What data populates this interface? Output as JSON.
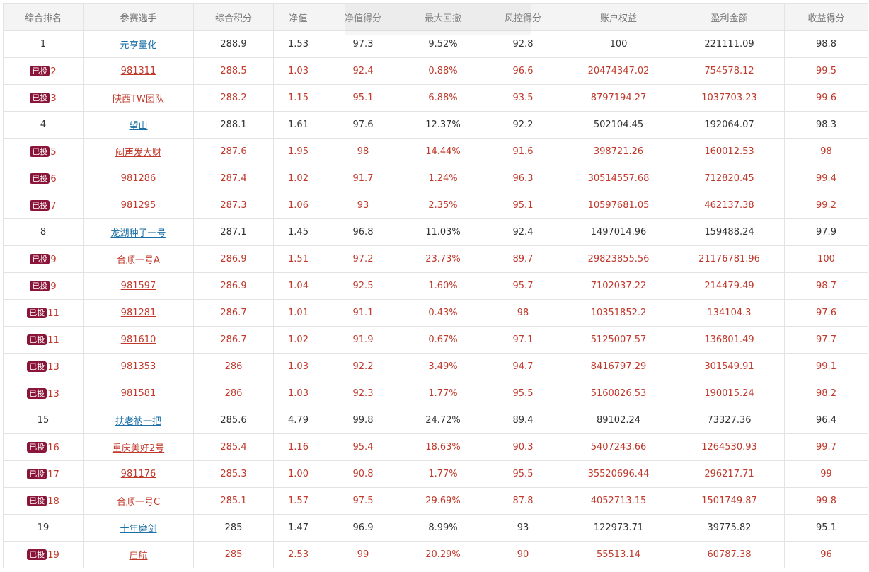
{
  "columns": [
    "综合排名",
    "参赛选手",
    "综合积分",
    "净值",
    "净值得分",
    "最大回撤",
    "风控得分",
    "账户权益",
    "盈利金额",
    "收益得分"
  ],
  "badge_label": "已投",
  "colors": {
    "invested_text": "#c0392b",
    "normal_link": "#1a6fa6",
    "badge_bg": "#8a1538",
    "header_bg": "#f4f4f4",
    "border": "#e3e3e3"
  },
  "rows": [
    {
      "rank": "1",
      "invested": false,
      "player": "元亨量化",
      "score": "288.9",
      "nav": "1.53",
      "nav_score": "97.3",
      "max_dd": "9.52%",
      "risk_score": "92.8",
      "equity": "100",
      "profit": "221111.09",
      "return_score": "98.8"
    },
    {
      "rank": "2",
      "invested": true,
      "player": "981311",
      "score": "288.5",
      "nav": "1.03",
      "nav_score": "92.4",
      "max_dd": "0.88%",
      "risk_score": "96.6",
      "equity": "20474347.02",
      "profit": "754578.12",
      "return_score": "99.5"
    },
    {
      "rank": "3",
      "invested": true,
      "player": "陕西TW团队",
      "score": "288.2",
      "nav": "1.15",
      "nav_score": "95.1",
      "max_dd": "6.88%",
      "risk_score": "93.5",
      "equity": "8797194.27",
      "profit": "1037703.23",
      "return_score": "99.6"
    },
    {
      "rank": "4",
      "invested": false,
      "player": "望山",
      "score": "288.1",
      "nav": "1.61",
      "nav_score": "97.6",
      "max_dd": "12.37%",
      "risk_score": "92.2",
      "equity": "502104.45",
      "profit": "192064.07",
      "return_score": "98.3"
    },
    {
      "rank": "5",
      "invested": true,
      "player": "闷声发大财",
      "score": "287.6",
      "nav": "1.95",
      "nav_score": "98",
      "max_dd": "14.44%",
      "risk_score": "91.6",
      "equity": "398721.26",
      "profit": "160012.53",
      "return_score": "98"
    },
    {
      "rank": "6",
      "invested": true,
      "player": "981286",
      "score": "287.4",
      "nav": "1.02",
      "nav_score": "91.7",
      "max_dd": "1.24%",
      "risk_score": "96.3",
      "equity": "30514557.68",
      "profit": "712820.45",
      "return_score": "99.4"
    },
    {
      "rank": "7",
      "invested": true,
      "player": "981295",
      "score": "287.3",
      "nav": "1.06",
      "nav_score": "93",
      "max_dd": "2.35%",
      "risk_score": "95.1",
      "equity": "10597681.05",
      "profit": "462137.38",
      "return_score": "99.2"
    },
    {
      "rank": "8",
      "invested": false,
      "player": "龙湖种子一号",
      "score": "287.1",
      "nav": "1.45",
      "nav_score": "96.8",
      "max_dd": "11.03%",
      "risk_score": "92.4",
      "equity": "1497014.96",
      "profit": "159488.24",
      "return_score": "97.9"
    },
    {
      "rank": "9",
      "invested": true,
      "player": "合顺一号A",
      "score": "286.9",
      "nav": "1.51",
      "nav_score": "97.2",
      "max_dd": "23.73%",
      "risk_score": "89.7",
      "equity": "29823855.56",
      "profit": "21176781.96",
      "return_score": "100"
    },
    {
      "rank": "9",
      "invested": true,
      "player": "981597",
      "score": "286.9",
      "nav": "1.04",
      "nav_score": "92.5",
      "max_dd": "1.60%",
      "risk_score": "95.7",
      "equity": "7102037.22",
      "profit": "214479.49",
      "return_score": "98.7"
    },
    {
      "rank": "11",
      "invested": true,
      "player": "981281",
      "score": "286.7",
      "nav": "1.01",
      "nav_score": "91.1",
      "max_dd": "0.43%",
      "risk_score": "98",
      "equity": "10351852.2",
      "profit": "134104.3",
      "return_score": "97.6"
    },
    {
      "rank": "11",
      "invested": true,
      "player": "981610",
      "score": "286.7",
      "nav": "1.02",
      "nav_score": "91.9",
      "max_dd": "0.67%",
      "risk_score": "97.1",
      "equity": "5125007.57",
      "profit": "136801.49",
      "return_score": "97.7"
    },
    {
      "rank": "13",
      "invested": true,
      "player": "981353",
      "score": "286",
      "nav": "1.03",
      "nav_score": "92.2",
      "max_dd": "3.49%",
      "risk_score": "94.7",
      "equity": "8416797.29",
      "profit": "301549.91",
      "return_score": "99.1"
    },
    {
      "rank": "13",
      "invested": true,
      "player": "981581",
      "score": "286",
      "nav": "1.03",
      "nav_score": "92.3",
      "max_dd": "1.77%",
      "risk_score": "95.5",
      "equity": "5160826.53",
      "profit": "190015.24",
      "return_score": "98.2"
    },
    {
      "rank": "15",
      "invested": false,
      "player": "扶老衲一把",
      "score": "285.6",
      "nav": "4.79",
      "nav_score": "99.8",
      "max_dd": "24.72%",
      "risk_score": "89.4",
      "equity": "89102.24",
      "profit": "73327.36",
      "return_score": "96.4"
    },
    {
      "rank": "16",
      "invested": true,
      "player": "重庆美好2号",
      "score": "285.4",
      "nav": "1.16",
      "nav_score": "95.4",
      "max_dd": "18.63%",
      "risk_score": "90.3",
      "equity": "5407243.66",
      "profit": "1264530.93",
      "return_score": "99.7"
    },
    {
      "rank": "17",
      "invested": true,
      "player": "981176",
      "score": "285.3",
      "nav": "1.00",
      "nav_score": "90.8",
      "max_dd": "1.77%",
      "risk_score": "95.5",
      "equity": "35520696.44",
      "profit": "296217.71",
      "return_score": "99"
    },
    {
      "rank": "18",
      "invested": true,
      "player": "合顺一号C",
      "score": "285.1",
      "nav": "1.57",
      "nav_score": "97.5",
      "max_dd": "29.69%",
      "risk_score": "87.8",
      "equity": "4052713.15",
      "profit": "1501749.87",
      "return_score": "99.8"
    },
    {
      "rank": "19",
      "invested": false,
      "player": "十年磨剑",
      "score": "285",
      "nav": "1.47",
      "nav_score": "96.9",
      "max_dd": "8.99%",
      "risk_score": "93",
      "equity": "122973.71",
      "profit": "39775.82",
      "return_score": "95.1"
    },
    {
      "rank": "19",
      "invested": true,
      "player": "启航",
      "score": "285",
      "nav": "2.53",
      "nav_score": "99",
      "max_dd": "20.29%",
      "risk_score": "90",
      "equity": "55513.14",
      "profit": "60787.38",
      "return_score": "96"
    }
  ]
}
